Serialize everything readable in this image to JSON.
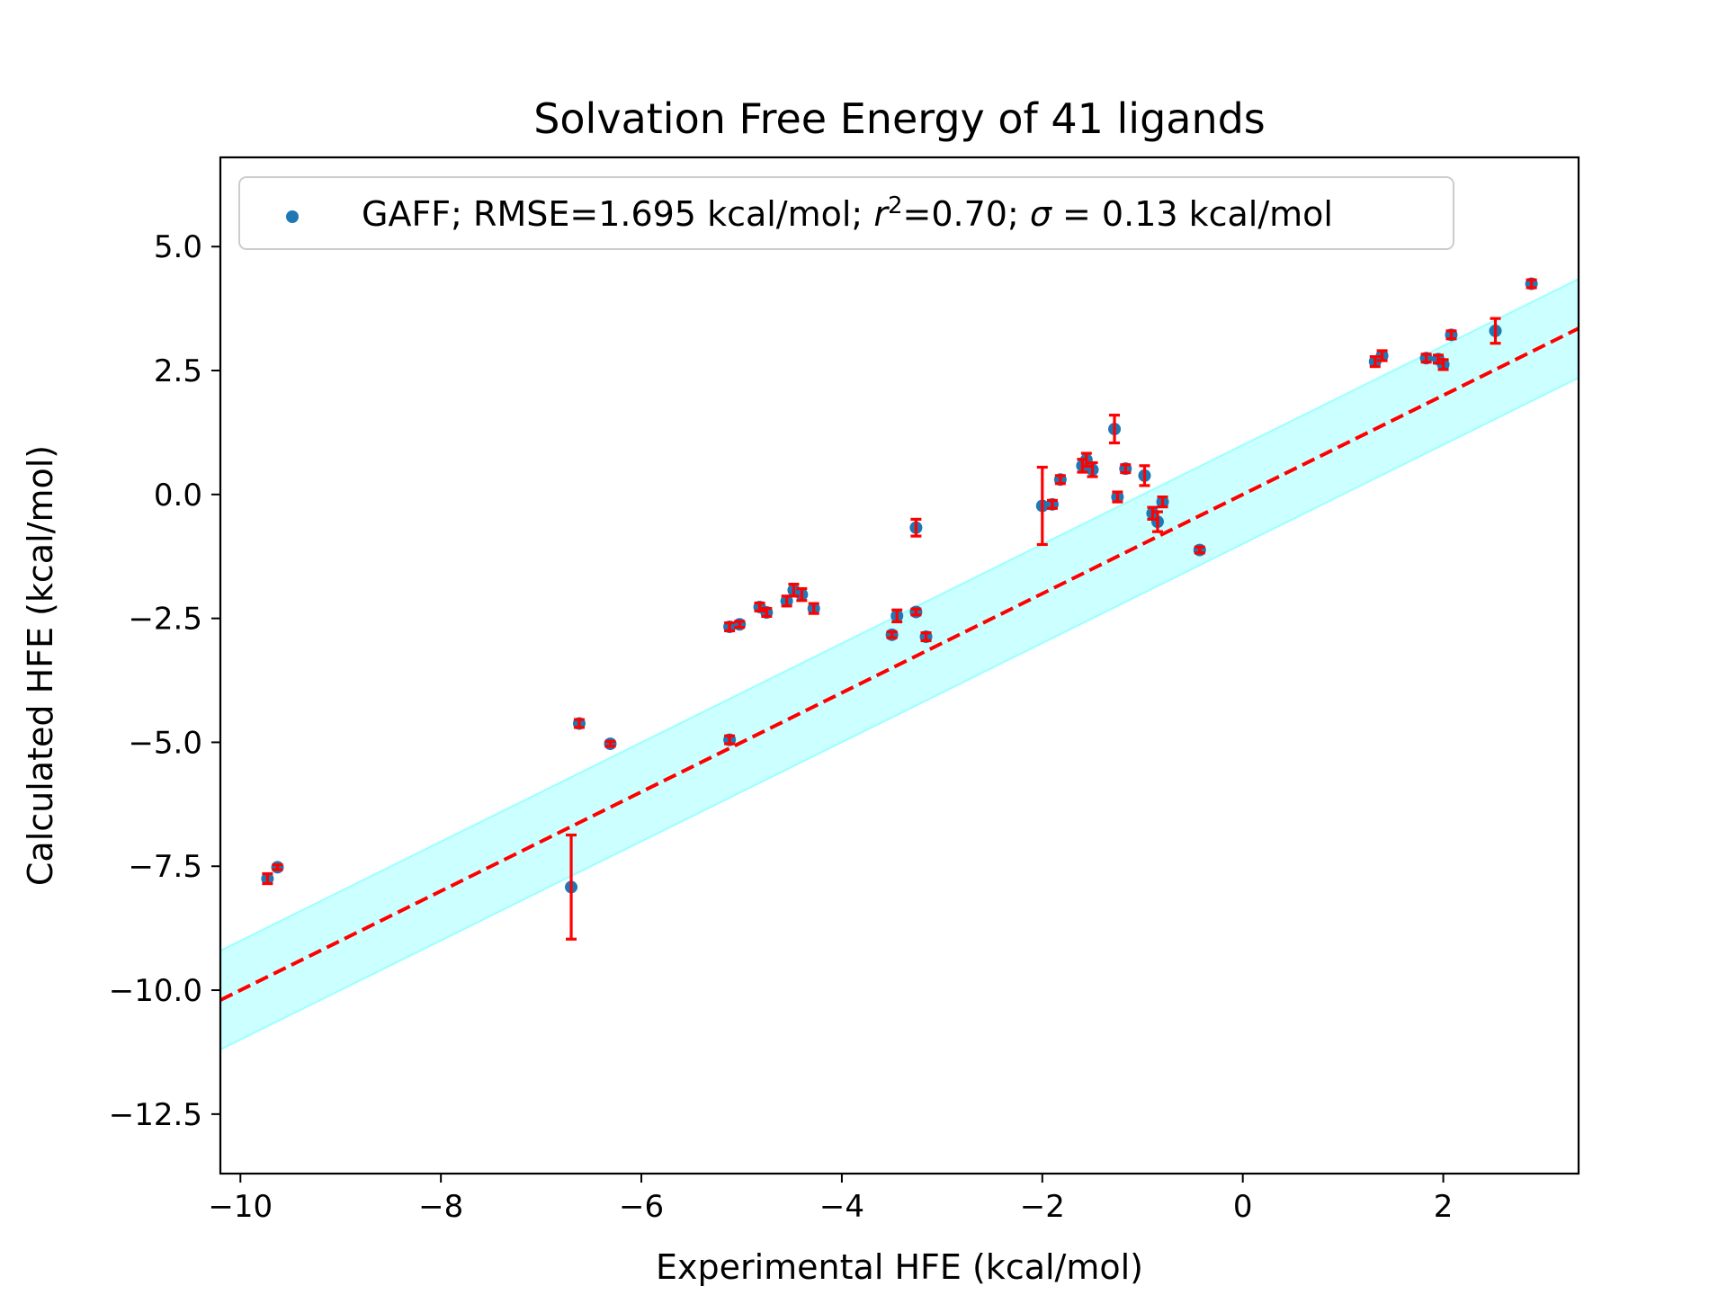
{
  "chart_data": {
    "type": "scatter",
    "title": "Solvation Free Energy of 41 ligands",
    "xlabel": "Experimental HFE (kcal/mol)",
    "ylabel": "Calculated HFE (kcal/mol)",
    "xlim": [
      -10.2,
      3.35
    ],
    "ylim": [
      -13.7,
      6.8
    ],
    "xticks": [
      -10,
      -8,
      -6,
      -4,
      -2,
      0,
      2
    ],
    "xtick_labels": [
      "−10",
      "−8",
      "−6",
      "−4",
      "−2",
      "0",
      "2"
    ],
    "yticks": [
      5.0,
      2.5,
      0.0,
      -2.5,
      -5.0,
      -7.5,
      -10.0,
      -12.5
    ],
    "ytick_labels": [
      "5.0",
      "2.5",
      "0.0",
      "−2.5",
      "−5.0",
      "−7.5",
      "−10.0",
      "−12.5"
    ],
    "legend": {
      "placement": "top-left",
      "prefix": "GAFF; RMSE=1.695 kcal/mol; ",
      "r_symbol": "r",
      "r_exponent": "2",
      "r_value": "=0.70; ",
      "sigma_symbol": "σ",
      "sigma_value": " = 0.13 kcal/mol"
    },
    "colors": {
      "points": "#1f77b4",
      "errorbars": "#ff0000",
      "identity_line": "#ff0000",
      "band": "#00ffff"
    },
    "identity_line": {
      "slope": 1,
      "intercept": 0,
      "style": "dashed"
    },
    "band": {
      "half_width": 1.0
    },
    "grid": false,
    "points": [
      {
        "x": -9.73,
        "y": -7.75,
        "err": 0.1
      },
      {
        "x": -9.63,
        "y": -7.52,
        "err": 0.05
      },
      {
        "x": -6.7,
        "y": -7.92,
        "err": 1.05
      },
      {
        "x": -6.62,
        "y": -4.62,
        "err": 0.08
      },
      {
        "x": -6.31,
        "y": -5.03,
        "err": 0.05
      },
      {
        "x": -5.12,
        "y": -2.67,
        "err": 0.08
      },
      {
        "x": -5.02,
        "y": -2.62,
        "err": 0.06
      },
      {
        "x": -5.12,
        "y": -4.95,
        "err": 0.08
      },
      {
        "x": -4.82,
        "y": -2.27,
        "err": 0.08
      },
      {
        "x": -4.75,
        "y": -2.38,
        "err": 0.08
      },
      {
        "x": -4.55,
        "y": -2.15,
        "err": 0.1
      },
      {
        "x": -4.48,
        "y": -1.93,
        "err": 0.12
      },
      {
        "x": -4.4,
        "y": -2.02,
        "err": 0.12
      },
      {
        "x": -4.28,
        "y": -2.3,
        "err": 0.1
      },
      {
        "x": -3.5,
        "y": -2.83,
        "err": 0.06
      },
      {
        "x": -3.45,
        "y": -2.45,
        "err": 0.12
      },
      {
        "x": -3.26,
        "y": -2.37,
        "err": 0.06
      },
      {
        "x": -3.26,
        "y": -0.67,
        "err": 0.17
      },
      {
        "x": -3.16,
        "y": -2.87,
        "err": 0.08
      },
      {
        "x": -2.0,
        "y": -0.23,
        "err": 0.78
      },
      {
        "x": -1.9,
        "y": -0.2,
        "err": 0.08
      },
      {
        "x": -1.82,
        "y": 0.3,
        "err": 0.08
      },
      {
        "x": -1.6,
        "y": 0.58,
        "err": 0.13
      },
      {
        "x": -1.56,
        "y": 0.7,
        "err": 0.13
      },
      {
        "x": -1.5,
        "y": 0.5,
        "err": 0.14
      },
      {
        "x": -1.28,
        "y": 1.32,
        "err": 0.28
      },
      {
        "x": -1.25,
        "y": -0.05,
        "err": 0.1
      },
      {
        "x": -1.17,
        "y": 0.52,
        "err": 0.08
      },
      {
        "x": -0.98,
        "y": 0.38,
        "err": 0.2
      },
      {
        "x": -0.9,
        "y": -0.38,
        "err": 0.12
      },
      {
        "x": -0.85,
        "y": -0.55,
        "err": 0.2
      },
      {
        "x": -0.8,
        "y": -0.15,
        "err": 0.1
      },
      {
        "x": -0.43,
        "y": -1.12,
        "err": 0.06
      },
      {
        "x": 1.32,
        "y": 2.68,
        "err": 0.1
      },
      {
        "x": 1.39,
        "y": 2.8,
        "err": 0.1
      },
      {
        "x": 1.83,
        "y": 2.75,
        "err": 0.08
      },
      {
        "x": 1.95,
        "y": 2.73,
        "err": 0.08
      },
      {
        "x": 2.0,
        "y": 2.62,
        "err": 0.1
      },
      {
        "x": 2.08,
        "y": 3.22,
        "err": 0.08
      },
      {
        "x": 2.52,
        "y": 3.3,
        "err": 0.25
      },
      {
        "x": 2.88,
        "y": 4.25,
        "err": 0.08
      }
    ]
  }
}
